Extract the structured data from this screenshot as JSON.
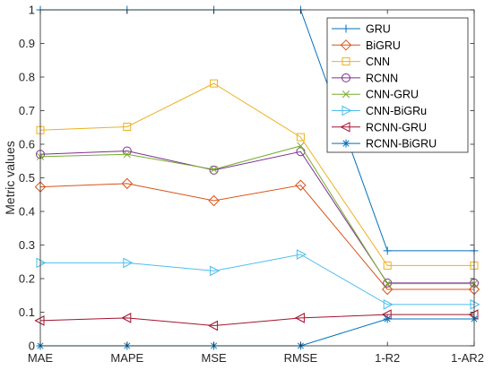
{
  "chart_data": {
    "type": "line",
    "title": "",
    "xlabel": "",
    "ylabel": "Metric values",
    "categories": [
      "MAE",
      "MAPE",
      "MSE",
      "RMSE",
      "1-R2",
      "1-AR2"
    ],
    "ylim": [
      0,
      1
    ],
    "yticks": [
      "0",
      "0.1",
      "0.2",
      "0.3",
      "0.4",
      "0.5",
      "0.6",
      "0.7",
      "0.8",
      "0.9",
      "1"
    ],
    "grid": false,
    "legend_position": "top-right",
    "series": [
      {
        "name": "GRU",
        "color": "#0072BD",
        "marker": "plus",
        "values": [
          1.0,
          1.0,
          1.0,
          1.0,
          0.283,
          0.283
        ]
      },
      {
        "name": "BiGRU",
        "color": "#D95319",
        "marker": "diamond",
        "values": [
          0.473,
          0.483,
          0.432,
          0.478,
          0.168,
          0.168
        ]
      },
      {
        "name": "CNN",
        "color": "#EDB120",
        "marker": "square",
        "values": [
          0.642,
          0.652,
          0.781,
          0.621,
          0.239,
          0.239
        ]
      },
      {
        "name": "RCNN",
        "color": "#7E2F8E",
        "marker": "circle",
        "values": [
          0.57,
          0.58,
          0.523,
          0.578,
          0.187,
          0.187
        ]
      },
      {
        "name": "CNN-GRU",
        "color": "#77AC30",
        "marker": "x",
        "values": [
          0.563,
          0.57,
          0.525,
          0.595,
          0.185,
          0.185
        ]
      },
      {
        "name": "CNN-BiGRu",
        "color": "#4DBEEE",
        "marker": "triangle-right",
        "values": [
          0.247,
          0.247,
          0.223,
          0.272,
          0.123,
          0.123
        ]
      },
      {
        "name": "RCNN-GRU",
        "color": "#A2142F",
        "marker": "triangle-left",
        "values": [
          0.075,
          0.083,
          0.06,
          0.083,
          0.093,
          0.093
        ]
      },
      {
        "name": "RCNN-BiGRU",
        "color": "#0072BD",
        "marker": "asterisk",
        "values": [
          0.0,
          0.0,
          0.0,
          0.0,
          0.08,
          0.08
        ]
      }
    ]
  }
}
